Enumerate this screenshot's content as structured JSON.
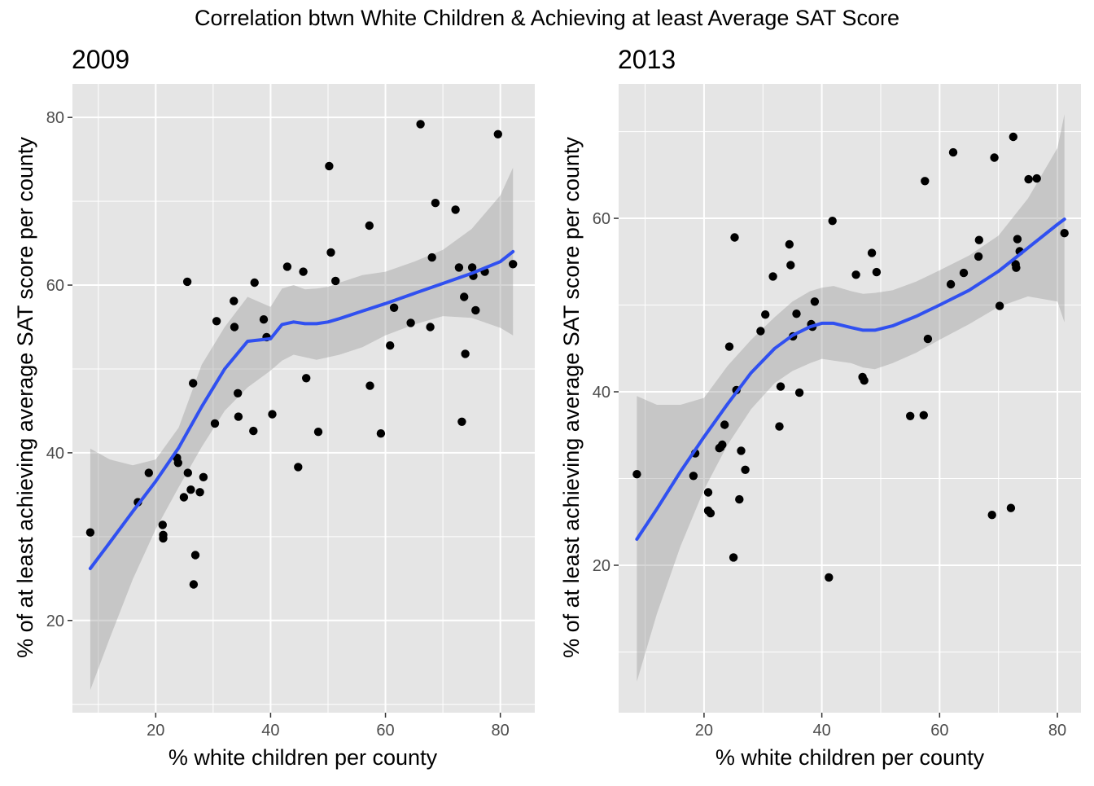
{
  "figure": {
    "title": "Correlation btwn White Children & Achieving at least Average SAT Score"
  },
  "chart_data": [
    {
      "type": "scatter",
      "title": "2009",
      "xlabel": "% white children per county",
      "ylabel": "% of at least achieving average SAT score per county",
      "xlim": [
        5.5,
        86
      ],
      "ylim": [
        9,
        84
      ],
      "xticks": [
        20,
        40,
        60,
        80
      ],
      "yticks": [
        20,
        40,
        60,
        80
      ],
      "grid": true,
      "colors": {
        "panel_bg": "#e5e5e5",
        "grid": "#ffffff",
        "points": "#000000",
        "smooth_line": "#3050f0",
        "ribbon": "#999999"
      },
      "points": [
        [
          8.6,
          30.5
        ],
        [
          16.9,
          34.1
        ],
        [
          18.8,
          37.6
        ],
        [
          21.2,
          31.4
        ],
        [
          21.3,
          30.2
        ],
        [
          21.3,
          29.8
        ],
        [
          23.7,
          39.4
        ],
        [
          23.9,
          38.8
        ],
        [
          24.9,
          34.7
        ],
        [
          25.5,
          60.4
        ],
        [
          25.6,
          37.6
        ],
        [
          26.1,
          35.6
        ],
        [
          26.5,
          48.3
        ],
        [
          26.6,
          24.3
        ],
        [
          26.9,
          27.8
        ],
        [
          27.7,
          35.3
        ],
        [
          28.3,
          37.1
        ],
        [
          30.3,
          43.5
        ],
        [
          30.6,
          55.7
        ],
        [
          33.6,
          58.1
        ],
        [
          33.7,
          55.0
        ],
        [
          34.3,
          47.1
        ],
        [
          34.4,
          44.3
        ],
        [
          37.0,
          42.6
        ],
        [
          37.2,
          60.3
        ],
        [
          38.8,
          55.9
        ],
        [
          39.3,
          53.8
        ],
        [
          40.3,
          44.6
        ],
        [
          42.9,
          62.2
        ],
        [
          44.8,
          38.3
        ],
        [
          45.7,
          61.6
        ],
        [
          46.2,
          48.9
        ],
        [
          48.3,
          42.5
        ],
        [
          50.2,
          74.2
        ],
        [
          50.5,
          63.9
        ],
        [
          51.3,
          60.5
        ],
        [
          57.2,
          67.1
        ],
        [
          57.3,
          48.0
        ],
        [
          59.2,
          42.3
        ],
        [
          60.8,
          52.8
        ],
        [
          61.5,
          57.3
        ],
        [
          64.4,
          55.5
        ],
        [
          66.1,
          79.2
        ],
        [
          67.8,
          55.0
        ],
        [
          68.1,
          63.3
        ],
        [
          68.7,
          69.8
        ],
        [
          72.2,
          69.0
        ],
        [
          72.8,
          62.1
        ],
        [
          73.3,
          43.7
        ],
        [
          73.7,
          58.6
        ],
        [
          73.9,
          51.8
        ],
        [
          75.1,
          62.1
        ],
        [
          75.3,
          61.1
        ],
        [
          75.7,
          57.0
        ],
        [
          77.3,
          61.6
        ],
        [
          79.6,
          78.0
        ],
        [
          82.2,
          62.5
        ]
      ],
      "smooth": {
        "x": [
          8.6,
          12,
          16,
          20,
          24,
          28,
          32,
          36,
          40,
          42,
          44,
          46,
          48,
          50,
          52,
          56,
          60,
          65,
          70,
          75,
          80,
          82.2
        ],
        "y": [
          26.2,
          29.3,
          33.0,
          36.6,
          40.6,
          45.5,
          50.0,
          53.3,
          53.6,
          55.3,
          55.6,
          55.4,
          55.4,
          55.6,
          56.0,
          56.9,
          57.8,
          59.0,
          60.2,
          61.4,
          62.8,
          64.0
        ],
        "lower": [
          11.7,
          17.9,
          24.9,
          30.9,
          35.9,
          40.7,
          45.0,
          47.8,
          49.8,
          51.0,
          51.7,
          51.4,
          51.1,
          51.4,
          51.7,
          52.6,
          54.0,
          55.3,
          56.3,
          56.1,
          54.9,
          54.0
        ],
        "upper": [
          40.5,
          39.2,
          38.5,
          39.2,
          43.0,
          50.5,
          55.0,
          58.6,
          57.4,
          59.6,
          60.0,
          59.5,
          59.6,
          59.8,
          60.3,
          61.2,
          61.6,
          62.8,
          64.2,
          66.7,
          70.7,
          74.0
        ]
      }
    },
    {
      "type": "scatter",
      "title": "2013",
      "xlabel": "% white children per county",
      "ylabel": "% of at least achieving average SAT score per county",
      "xlim": [
        5.5,
        84
      ],
      "ylim": [
        3,
        75.5
      ],
      "xticks": [
        20,
        40,
        60,
        80
      ],
      "yticks": [
        20,
        40,
        60
      ],
      "grid": true,
      "colors": {
        "panel_bg": "#e5e5e5",
        "grid": "#ffffff",
        "points": "#000000",
        "smooth_line": "#3050f0",
        "ribbon": "#999999"
      },
      "points": [
        [
          8.6,
          30.5
        ],
        [
          18.2,
          30.3
        ],
        [
          18.5,
          32.9
        ],
        [
          20.7,
          28.4
        ],
        [
          20.7,
          26.3
        ],
        [
          21.1,
          26.0
        ],
        [
          22.6,
          33.5
        ],
        [
          22.8,
          33.6
        ],
        [
          23.1,
          33.9
        ],
        [
          23.5,
          36.2
        ],
        [
          24.3,
          45.2
        ],
        [
          25.0,
          20.9
        ],
        [
          25.2,
          57.8
        ],
        [
          25.5,
          40.2
        ],
        [
          26.0,
          27.6
        ],
        [
          26.3,
          33.2
        ],
        [
          27.0,
          31.0
        ],
        [
          29.6,
          47.0
        ],
        [
          30.4,
          48.9
        ],
        [
          31.7,
          53.3
        ],
        [
          32.8,
          36.0
        ],
        [
          33.0,
          40.6
        ],
        [
          34.5,
          57.0
        ],
        [
          34.7,
          54.6
        ],
        [
          35.1,
          46.4
        ],
        [
          35.7,
          49.0
        ],
        [
          36.2,
          39.9
        ],
        [
          38.2,
          47.8
        ],
        [
          38.4,
          47.5
        ],
        [
          38.8,
          50.4
        ],
        [
          41.2,
          18.6
        ],
        [
          41.8,
          59.7
        ],
        [
          45.8,
          53.5
        ],
        [
          46.9,
          41.7
        ],
        [
          47.2,
          41.3
        ],
        [
          48.5,
          56.0
        ],
        [
          49.3,
          53.8
        ],
        [
          55.0,
          37.2
        ],
        [
          57.3,
          37.3
        ],
        [
          57.5,
          64.3
        ],
        [
          58.0,
          46.1
        ],
        [
          61.9,
          52.4
        ],
        [
          62.3,
          67.6
        ],
        [
          64.1,
          53.7
        ],
        [
          66.6,
          55.6
        ],
        [
          66.7,
          57.5
        ],
        [
          68.9,
          25.8
        ],
        [
          69.3,
          67.0
        ],
        [
          70.2,
          49.9
        ],
        [
          72.1,
          26.6
        ],
        [
          72.5,
          69.4
        ],
        [
          72.9,
          54.7
        ],
        [
          73.0,
          54.3
        ],
        [
          73.2,
          57.6
        ],
        [
          73.6,
          56.2
        ],
        [
          75.1,
          64.5
        ],
        [
          76.5,
          64.6
        ],
        [
          81.2,
          58.3
        ]
      ],
      "smooth": {
        "x": [
          8.6,
          12,
          16,
          20,
          24,
          28,
          32,
          35,
          38,
          40,
          42,
          45,
          47,
          49,
          52,
          56,
          60,
          65,
          70,
          75,
          80,
          81.2
        ],
        "y": [
          23.0,
          26.5,
          30.8,
          34.8,
          38.6,
          42.2,
          45.0,
          46.5,
          47.5,
          47.9,
          47.9,
          47.4,
          47.1,
          47.1,
          47.6,
          48.7,
          50.0,
          51.7,
          53.9,
          56.6,
          59.3,
          59.9
        ],
        "lower": [
          6.6,
          14.4,
          22.2,
          28.7,
          33.9,
          38.0,
          41.0,
          42.4,
          43.3,
          43.8,
          43.6,
          43.3,
          42.8,
          42.6,
          43.3,
          44.5,
          46.0,
          47.8,
          49.8,
          51.0,
          50.4,
          48.0
        ],
        "upper": [
          39.5,
          38.5,
          38.5,
          39.3,
          43.0,
          46.0,
          48.6,
          50.4,
          51.6,
          52.0,
          52.2,
          51.6,
          51.3,
          51.4,
          51.7,
          52.7,
          54.0,
          55.7,
          58.0,
          62.3,
          68.1,
          72.0
        ]
      }
    }
  ]
}
